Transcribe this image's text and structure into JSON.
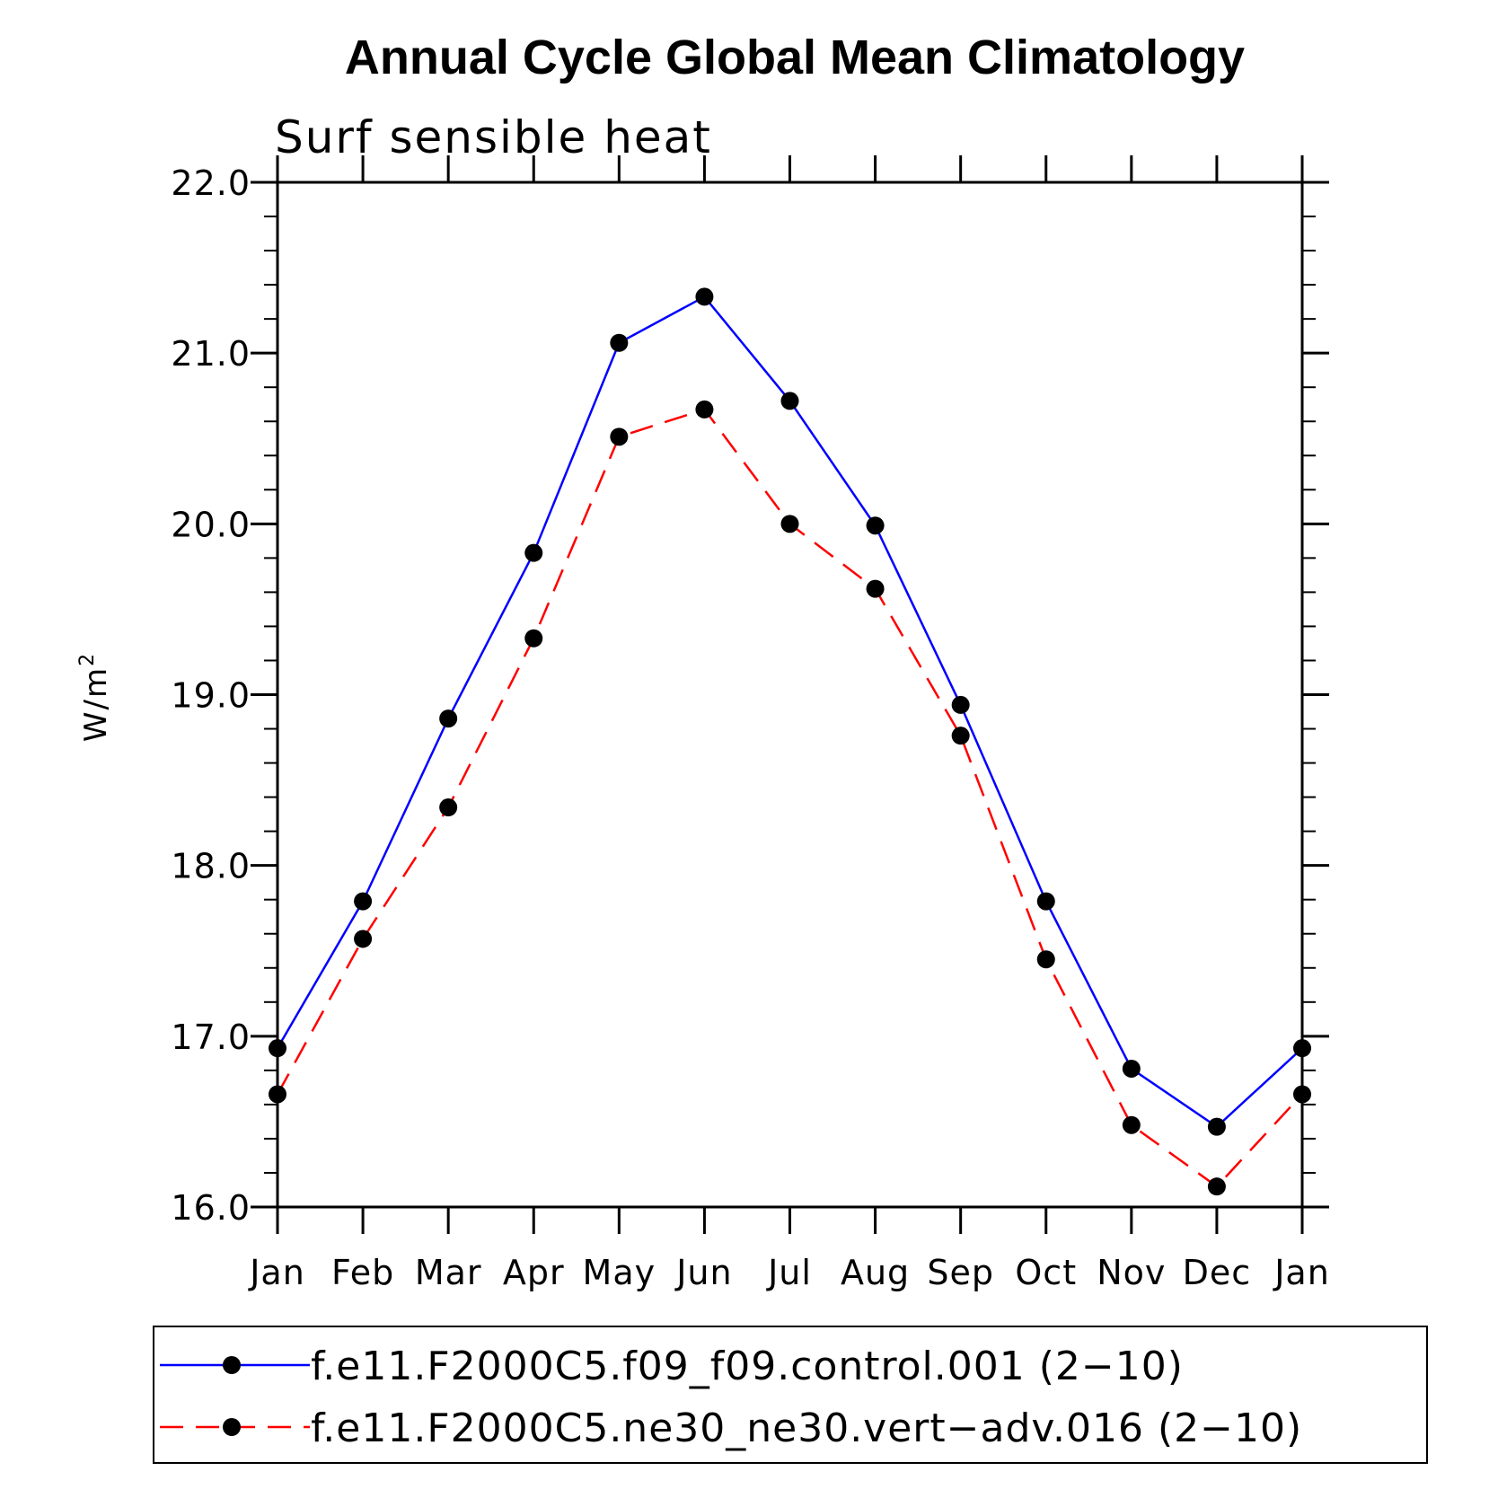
{
  "chart_data": {
    "type": "line",
    "title": "Annual Cycle Global Mean Climatology",
    "subtitle": "Surf sensible heat",
    "ylabel_base": "W/m",
    "ylabel_sup": "2",
    "ylim": [
      16.0,
      22.0
    ],
    "yticks": [
      "16.0",
      "17.0",
      "18.0",
      "19.0",
      "20.0",
      "21.0",
      "22.0"
    ],
    "categories": [
      "Jan",
      "Feb",
      "Mar",
      "Apr",
      "May",
      "Jun",
      "Jul",
      "Aug",
      "Sep",
      "Oct",
      "Nov",
      "Dec",
      "Jan"
    ],
    "series": [
      {
        "name": "f.e11.F2000C5.f09_f09.control.001 (2−10)",
        "color": "#0000ff",
        "dash": "solid",
        "values": [
          16.93,
          17.79,
          18.86,
          19.83,
          21.06,
          21.33,
          20.72,
          19.99,
          18.94,
          17.79,
          16.81,
          16.47,
          16.93
        ]
      },
      {
        "name": "f.e11.F2000C5.ne30_ne30.vert−adv.016 (2−10)",
        "color": "#ff0000",
        "dash": "dashed",
        "values": [
          16.66,
          17.57,
          18.34,
          19.33,
          20.51,
          20.67,
          20.0,
          19.62,
          18.76,
          17.45,
          16.48,
          16.12,
          16.66
        ]
      }
    ],
    "marker_color": "#000000",
    "legend_position": "bottom"
  }
}
